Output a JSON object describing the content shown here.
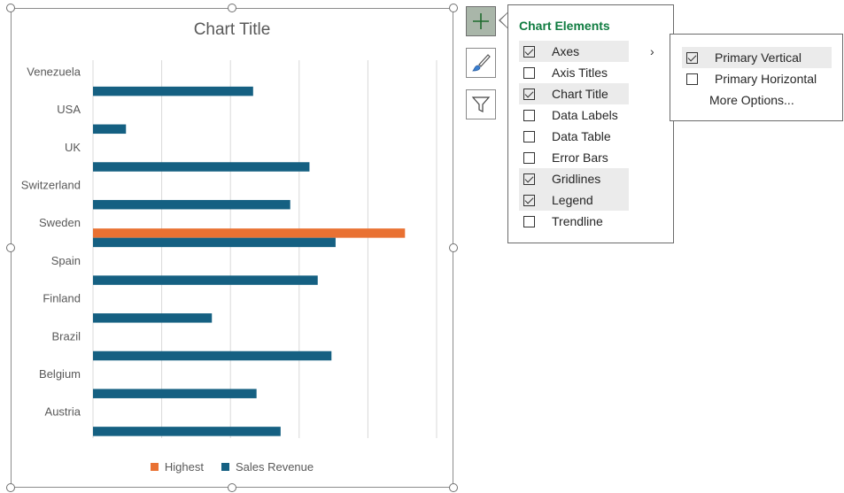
{
  "chart": {
    "title": "Chart Title"
  },
  "legend": {
    "items": [
      {
        "label": "Highest",
        "color": "#E97132"
      },
      {
        "label": "Sales Revenue",
        "color": "#156082"
      }
    ]
  },
  "chart_data": {
    "type": "bar",
    "orientation": "horizontal",
    "title": "Chart Title",
    "categories": [
      "Austria",
      "Belgium",
      "Brazil",
      "Finland",
      "Spain",
      "Sweden",
      "Switzerland",
      "UK",
      "USA",
      "Venezuela"
    ],
    "series": [
      {
        "name": "Highest",
        "color": "#E97132",
        "values": [
          0,
          0,
          0,
          0,
          0,
          454,
          0,
          0,
          0,
          0
        ]
      },
      {
        "name": "Sales Revenue",
        "color": "#156082",
        "values": [
          273,
          238,
          347,
          173,
          327,
          353,
          287,
          315,
          48,
          233
        ]
      }
    ],
    "xlim": [
      0,
      500
    ],
    "gridlines": true,
    "legend_position": "bottom",
    "gridline_color": "#D9D9D9"
  },
  "side_buttons": {
    "elements_icon": "plus-icon",
    "styles_icon": "paintbrush-icon",
    "filters_icon": "funnel-icon"
  },
  "elements_panel": {
    "title": "Chart Elements",
    "items": [
      {
        "label": "Axes",
        "checked": true,
        "highlighted": true
      },
      {
        "label": "Axis Titles",
        "checked": false,
        "highlighted": false
      },
      {
        "label": "Chart Title",
        "checked": true,
        "highlighted": true
      },
      {
        "label": "Data Labels",
        "checked": false,
        "highlighted": false
      },
      {
        "label": "Data Table",
        "checked": false,
        "highlighted": false
      },
      {
        "label": "Error Bars",
        "checked": false,
        "highlighted": false
      },
      {
        "label": "Gridlines",
        "checked": true,
        "highlighted": true
      },
      {
        "label": "Legend",
        "checked": true,
        "highlighted": true
      },
      {
        "label": "Trendline",
        "checked": false,
        "highlighted": false
      }
    ],
    "submenu_arrow_icon": "chevron-right-icon"
  },
  "axes_submenu": {
    "items": [
      {
        "label": "Primary Vertical",
        "checked": true,
        "highlighted": true
      },
      {
        "label": "Primary Horizontal",
        "checked": false,
        "highlighted": false
      }
    ],
    "more_options": "More Options..."
  }
}
